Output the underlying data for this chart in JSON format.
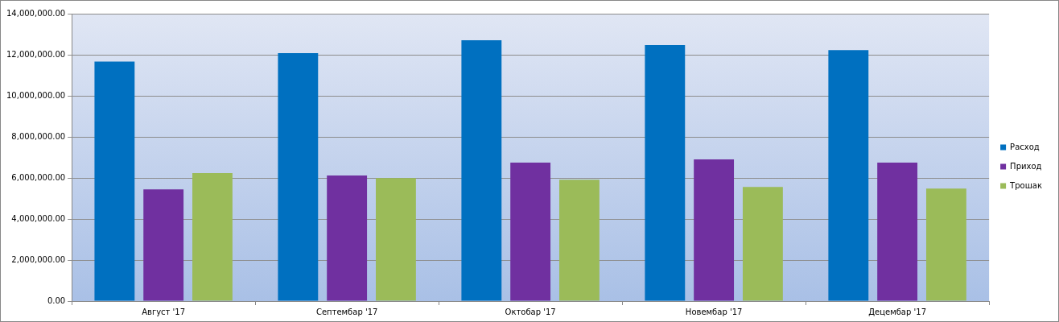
{
  "chart_data": {
    "type": "bar",
    "categories": [
      "Август '17",
      "Септембар '17",
      "Октобар '17",
      "Новембар '17",
      "Децембар '17"
    ],
    "series": [
      {
        "name": "Расход",
        "color": "#0070c0",
        "values": [
          11670000,
          12080000,
          12710000,
          12470000,
          12230000
        ]
      },
      {
        "name": "Приход",
        "color": "#7030a0",
        "values": [
          5440000,
          6120000,
          6750000,
          6900000,
          6750000
        ]
      },
      {
        "name": "Трошак",
        "color": "#9bbb59",
        "values": [
          6240000,
          5990000,
          5910000,
          5560000,
          5480000
        ]
      }
    ],
    "ylim": [
      0,
      14000000
    ],
    "yticks": [
      {
        "value": 0,
        "label": "0.00"
      },
      {
        "value": 2000000,
        "label": "2,000,000.00"
      },
      {
        "value": 4000000,
        "label": "4,000,000.00"
      },
      {
        "value": 6000000,
        "label": "6,000,000.00"
      },
      {
        "value": 8000000,
        "label": "8,000,000.00"
      },
      {
        "value": 10000000,
        "label": "10,000,000.00"
      },
      {
        "value": 12000000,
        "label": "12,000,000.00"
      },
      {
        "value": 14000000,
        "label": "14,000,000.00"
      }
    ],
    "grid": "y",
    "legend": "right"
  }
}
